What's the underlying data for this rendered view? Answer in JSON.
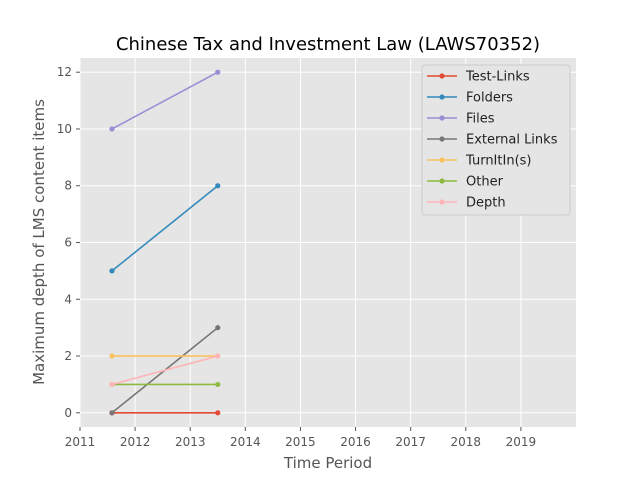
{
  "chart_data": {
    "type": "line",
    "title": "Chinese Tax and Investment Law (LAWS70352)",
    "xlabel": "Time Period",
    "ylabel": "Maximum depth of LMS content items",
    "xlim": [
      2011,
      2020
    ],
    "ylim": [
      -0.5,
      12.5
    ],
    "x_ticks": [
      2011,
      2012,
      2013,
      2014,
      2015,
      2016,
      2017,
      2018,
      2019
    ],
    "y_ticks": [
      0,
      2,
      4,
      6,
      8,
      10,
      12
    ],
    "grid": true,
    "legend_position": "top-right",
    "x": [
      2011.58,
      2013.5
    ],
    "series": [
      {
        "name": "Test-Links",
        "color": "#e24a33",
        "values": [
          0,
          0
        ]
      },
      {
        "name": "Folders",
        "color": "#348abd",
        "values": [
          5,
          8
        ]
      },
      {
        "name": "Files",
        "color": "#988ed5",
        "values": [
          10,
          12
        ]
      },
      {
        "name": "External Links",
        "color": "#777777",
        "values": [
          0,
          3
        ]
      },
      {
        "name": "TurnItIn(s)",
        "color": "#fbc15e",
        "values": [
          2,
          2
        ]
      },
      {
        "name": "Other",
        "color": "#8eba42",
        "values": [
          1,
          1
        ]
      },
      {
        "name": "Depth",
        "color": "#ffb5b8",
        "values": [
          1,
          2
        ]
      }
    ]
  }
}
